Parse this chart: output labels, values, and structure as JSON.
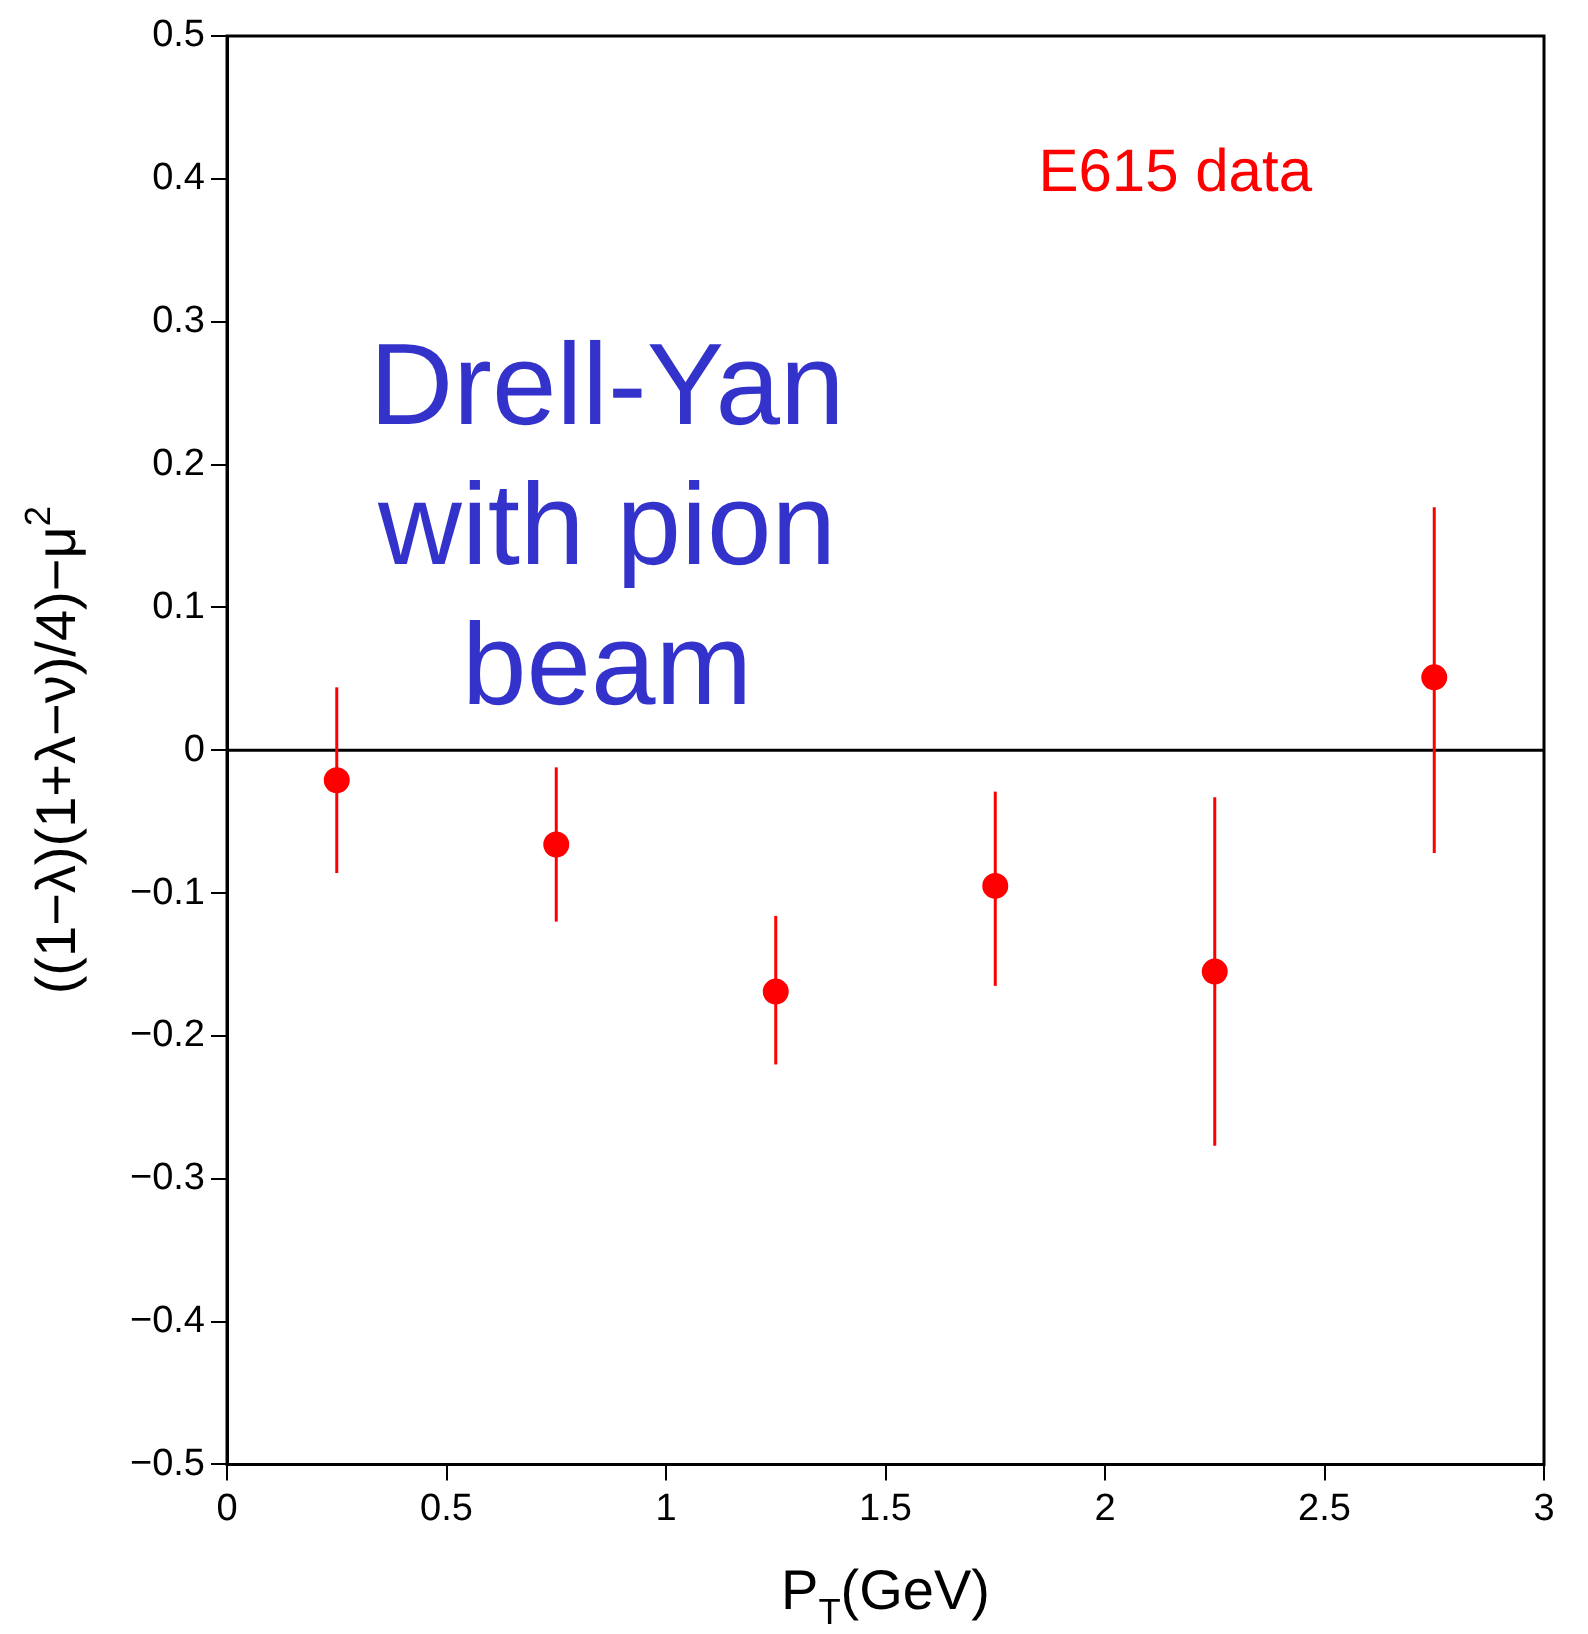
{
  "chart_data": {
    "type": "scatter",
    "xlabel": "P$_{T}$(GeV)",
    "ylabel": "((1−λ)(1+λ−ν)/4)−μ$^{2}$",
    "annotations": [
      "E615 data",
      "Drell-Yan with pion beam"
    ],
    "x": [
      0.25,
      0.75,
      1.25,
      1.75,
      2.25,
      2.75
    ],
    "values": [
      -0.021,
      -0.066,
      -0.169,
      -0.095,
      -0.155,
      0.051
    ],
    "errors": [
      [
        -0.086,
        0.044
      ],
      [
        -0.12,
        -0.012
      ],
      [
        -0.22,
        -0.116
      ],
      [
        -0.165,
        -0.029
      ],
      [
        -0.277,
        -0.033
      ],
      [
        -0.072,
        0.17
      ]
    ],
    "color": "#ff0000",
    "marker": "circle",
    "xlim": [
      0,
      3
    ],
    "xticks": [
      0,
      0.5,
      1,
      1.5,
      2,
      2.5,
      3
    ],
    "ylim": [
      -0.5,
      0.5
    ],
    "yticks": [
      -0.5,
      -0.4,
      -0.3,
      -0.2,
      -0.1,
      0,
      0.1,
      0.2,
      0.3,
      0.4,
      0.5
    ],
    "ref_lines": [
      {
        "axis": "y",
        "value": 0,
        "color": "#000000"
      }
    ],
    "grid": false,
    "legend": false
  }
}
